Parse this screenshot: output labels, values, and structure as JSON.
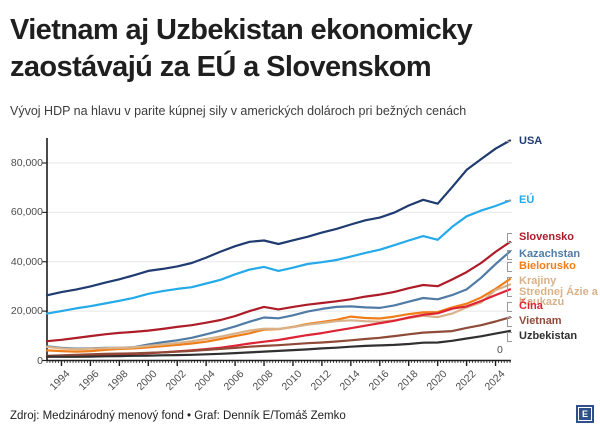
{
  "header": {
    "title": "Vietnam aj Uzbekistan ekonomicky zaostávajú za EÚ a Slovenskom",
    "subtitle": "Vývoj HDP na hlavu v parite kúpnej sily v amerických dolároch pri bežných cenách"
  },
  "footer": {
    "source": "Zdroj: Medzinárodný menový fond • Graf: Denník E/Tomáš Zemko",
    "logo_letter": "E",
    "logo_color": "#2f4f8d"
  },
  "chart_data": {
    "type": "line",
    "x_range": [
      1993,
      2025
    ],
    "x_ticks": [
      1994,
      1996,
      1998,
      2000,
      2002,
      2004,
      2006,
      2008,
      2010,
      2012,
      2014,
      2016,
      2018,
      2020,
      2022,
      2024
    ],
    "y_ticks": [
      {
        "value": 0,
        "label": "0"
      },
      {
        "value": 20000,
        "label": "20,000"
      },
      {
        "value": 40000,
        "label": "40,000"
      },
      {
        "value": 60000,
        "label": "60,000"
      },
      {
        "value": 80000,
        "label": "80,000"
      }
    ],
    "right_zero_label": "0",
    "ylim": [
      0,
      90000
    ],
    "grid": "horizontal",
    "legend_position": "right",
    "series": [
      {
        "name": "USA",
        "color": "#1f3b70",
        "values": [
          26400,
          27700,
          28700,
          30000,
          31500,
          32900,
          34500,
          36300,
          37100,
          38100,
          39500,
          41700,
          44100,
          46300,
          48100,
          48600,
          47200,
          48700,
          50100,
          51800,
          53300,
          55100,
          56800,
          57900,
          59900,
          62800,
          65100,
          63500,
          70200,
          77200,
          81600,
          85800,
          89100
        ]
      },
      {
        "name": "EÚ",
        "color": "#25aae9",
        "values": [
          19000,
          20000,
          21100,
          22000,
          23100,
          24200,
          25400,
          27000,
          28100,
          29000,
          29700,
          31200,
          32700,
          34900,
          36800,
          37900,
          36300,
          37600,
          39100,
          39800,
          40700,
          42100,
          43600,
          44900,
          46700,
          48600,
          50400,
          48900,
          54100,
          58400,
          60700,
          62600,
          64800
        ]
      },
      {
        "name": "Slovensko",
        "color": "#ae1c28",
        "values": [
          7800,
          8400,
          9100,
          9900,
          10600,
          11200,
          11600,
          12100,
          12800,
          13600,
          14300,
          15300,
          16400,
          18000,
          20000,
          21700,
          20700,
          21700,
          22600,
          23300,
          24000,
          24800,
          25900,
          26700,
          27800,
          29300,
          30600,
          30100,
          32800,
          35800,
          39500,
          44000,
          48000
        ]
      },
      {
        "name": "Kazachstan",
        "color": "#4f7ba6",
        "values": [
          5700,
          5100,
          4800,
          4900,
          5100,
          5100,
          5400,
          6500,
          7400,
          8200,
          9200,
          10600,
          12100,
          13800,
          15700,
          17400,
          17100,
          18300,
          19800,
          20900,
          21700,
          21900,
          21500,
          21300,
          22300,
          23800,
          25300,
          24800,
          26500,
          28800,
          33500,
          39000,
          44200
        ]
      },
      {
        "name": "Bielorusko",
        "color": "#ef7d1a",
        "values": [
          4100,
          3800,
          3600,
          3800,
          4300,
          4700,
          4900,
          5300,
          5800,
          6300,
          6900,
          7600,
          8700,
          9900,
          11000,
          12500,
          12700,
          13600,
          14800,
          15600,
          16500,
          17800,
          17200,
          17000,
          17800,
          18800,
          19500,
          19600,
          21500,
          23000,
          25500,
          29000,
          33000
        ]
      },
      {
        "name": "Krajiny Strednej Ázie a Kaukazu",
        "color": "#d8b189",
        "values": [
          5500,
          4900,
          4600,
          4800,
          5000,
          5100,
          5300,
          5900,
          6500,
          7100,
          7800,
          8700,
          9700,
          10900,
          12100,
          12900,
          12800,
          13500,
          14500,
          15200,
          15900,
          16300,
          15900,
          15700,
          16300,
          17200,
          18100,
          17600,
          19000,
          21500,
          23500,
          28500,
          30800
        ]
      },
      {
        "name": "Čína",
        "color": "#dd2334",
        "values": [
          1500,
          1700,
          1900,
          2100,
          2300,
          2500,
          2700,
          3000,
          3300,
          3700,
          4100,
          4600,
          5200,
          6000,
          6900,
          7600,
          8300,
          9300,
          10300,
          11100,
          12100,
          13100,
          14100,
          15100,
          16100,
          17400,
          18500,
          19100,
          21000,
          21900,
          24100,
          26500,
          28800
        ]
      },
      {
        "name": "Vietnam",
        "color": "#8f4a38",
        "values": [
          1900,
          2100,
          2300,
          2500,
          2700,
          2800,
          2900,
          3100,
          3300,
          3600,
          3900,
          4300,
          4700,
          5100,
          5600,
          5900,
          6200,
          6600,
          7000,
          7300,
          7700,
          8200,
          8700,
          9200,
          9900,
          10600,
          11300,
          11600,
          11900,
          13200,
          14300,
          15800,
          17500
        ]
      },
      {
        "name": "Uzbekistan",
        "color": "#303030",
        "values": [
          1600,
          1500,
          1500,
          1600,
          1700,
          1800,
          1900,
          2000,
          2100,
          2200,
          2300,
          2500,
          2700,
          3000,
          3300,
          3600,
          3900,
          4200,
          4500,
          4900,
          5200,
          5600,
          5900,
          6100,
          6300,
          6700,
          7200,
          7300,
          8000,
          8900,
          9800,
          10900,
          12000
        ]
      }
    ]
  }
}
